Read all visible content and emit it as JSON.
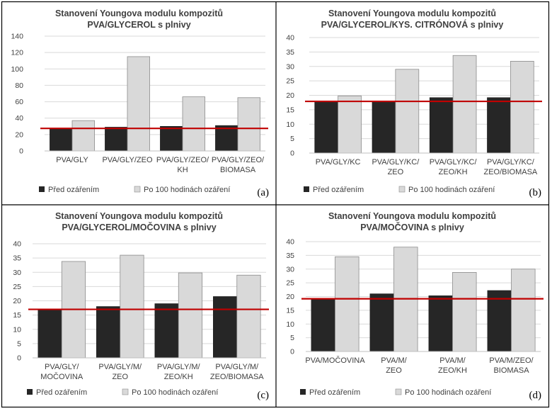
{
  "colors": {
    "before": "#262626",
    "after": "#d9d9d9",
    "after_stroke": "#8c8c8c",
    "reference_line": "#c00000",
    "grid": "#d9d9d9",
    "frame": "#000000"
  },
  "legend": {
    "before_label": "Před ozářením",
    "after_label": "Po 100 hodinách ozáření"
  },
  "chart_data": [
    {
      "type": "bar",
      "panel_letter": "(a)",
      "title": [
        "Stanovení Youngova modulu kompozitů",
        "PVA/GLYCEROL s plnivy"
      ],
      "categories": [
        [
          "PVA/GLY"
        ],
        [
          "PVA/GLY/ZEO"
        ],
        [
          "PVA/GLY/ZEO/",
          "KH"
        ],
        [
          "PVA/GLY/ZEO/",
          "BIOMASA"
        ]
      ],
      "series": [
        {
          "name": "Před ozářením",
          "values": [
            27,
            29,
            30,
            31
          ]
        },
        {
          "name": "Po 100 hodinách ozáření",
          "values": [
            37,
            115,
            66,
            65
          ]
        }
      ],
      "reference_line": 27.5,
      "ylim": [
        0,
        140
      ],
      "yticks": [
        0,
        20,
        40,
        60,
        80,
        100,
        120,
        140
      ],
      "grid": true,
      "legend_position": "bottom"
    },
    {
      "type": "bar",
      "panel_letter": "(b)",
      "title": [
        "Stanovení Youngova modulu kompozitů",
        "PVA/GLYCEROL/KYS. CITRÓNOVÁ  s plnivy"
      ],
      "categories": [
        [
          "PVA/GLY/KC"
        ],
        [
          "PVA/GLY/KC/",
          "ZEO"
        ],
        [
          "PVA/GLY/KC/",
          "ZEO/KH"
        ],
        [
          "PVA/GLY/KC/",
          "ZEO/BIOMASA"
        ]
      ],
      "series": [
        {
          "name": "Před ozářením",
          "values": [
            18,
            18,
            19.2,
            19.2
          ]
        },
        {
          "name": "Po 100 hodinách ozáření",
          "values": [
            19.8,
            29,
            33.8,
            31.8
          ]
        }
      ],
      "reference_line": 17.9,
      "ylim": [
        0,
        40
      ],
      "yticks": [
        0,
        5,
        10,
        15,
        20,
        25,
        30,
        35,
        40
      ],
      "grid": true,
      "legend_position": "bottom"
    },
    {
      "type": "bar",
      "panel_letter": "(c)",
      "title": [
        "Stanovení Youngova modulu kompozitů",
        "PVA/GLYCEROL/MOČOVINA  s plnivy"
      ],
      "categories": [
        [
          "PVA/GLY/",
          "MOČOVINA"
        ],
        [
          "PVA/GLY/M/",
          "ZEO"
        ],
        [
          "PVA/GLY/M/",
          "ZEO/KH"
        ],
        [
          "PVA/GLY/M/",
          "ZEO/BIOMASA"
        ]
      ],
      "series": [
        {
          "name": "Před ozářením",
          "values": [
            17,
            18,
            19,
            21.5
          ]
        },
        {
          "name": "Po 100 hodinách ozáření",
          "values": [
            33.8,
            36,
            29.8,
            29
          ]
        }
      ],
      "reference_line": 17,
      "ylim": [
        0,
        40
      ],
      "yticks": [
        0,
        5,
        10,
        15,
        20,
        25,
        30,
        35,
        40
      ],
      "grid": true,
      "legend_position": "bottom"
    },
    {
      "type": "bar",
      "panel_letter": "(d)",
      "title": [
        "Stanovení Youngova modulu kompozitů",
        "PVA/MOČOVINA s plnivy"
      ],
      "categories": [
        [
          "PVA/MOČOVINA"
        ],
        [
          "PVA/M/",
          "ZEO"
        ],
        [
          "PVA/M/",
          "ZEO/KH"
        ],
        [
          "PVA/M/ZEO/",
          "BIOMASA"
        ]
      ],
      "series": [
        {
          "name": "Před ozářením",
          "values": [
            19.2,
            21,
            20.3,
            22.2
          ]
        },
        {
          "name": "Po 100 hodinách ozáření",
          "values": [
            34.5,
            38,
            28.8,
            30
          ]
        }
      ],
      "reference_line": 19.2,
      "ylim": [
        0,
        40
      ],
      "yticks": [
        0,
        5,
        10,
        15,
        20,
        25,
        30,
        35,
        40
      ],
      "grid": true,
      "legend_position": "bottom"
    }
  ]
}
